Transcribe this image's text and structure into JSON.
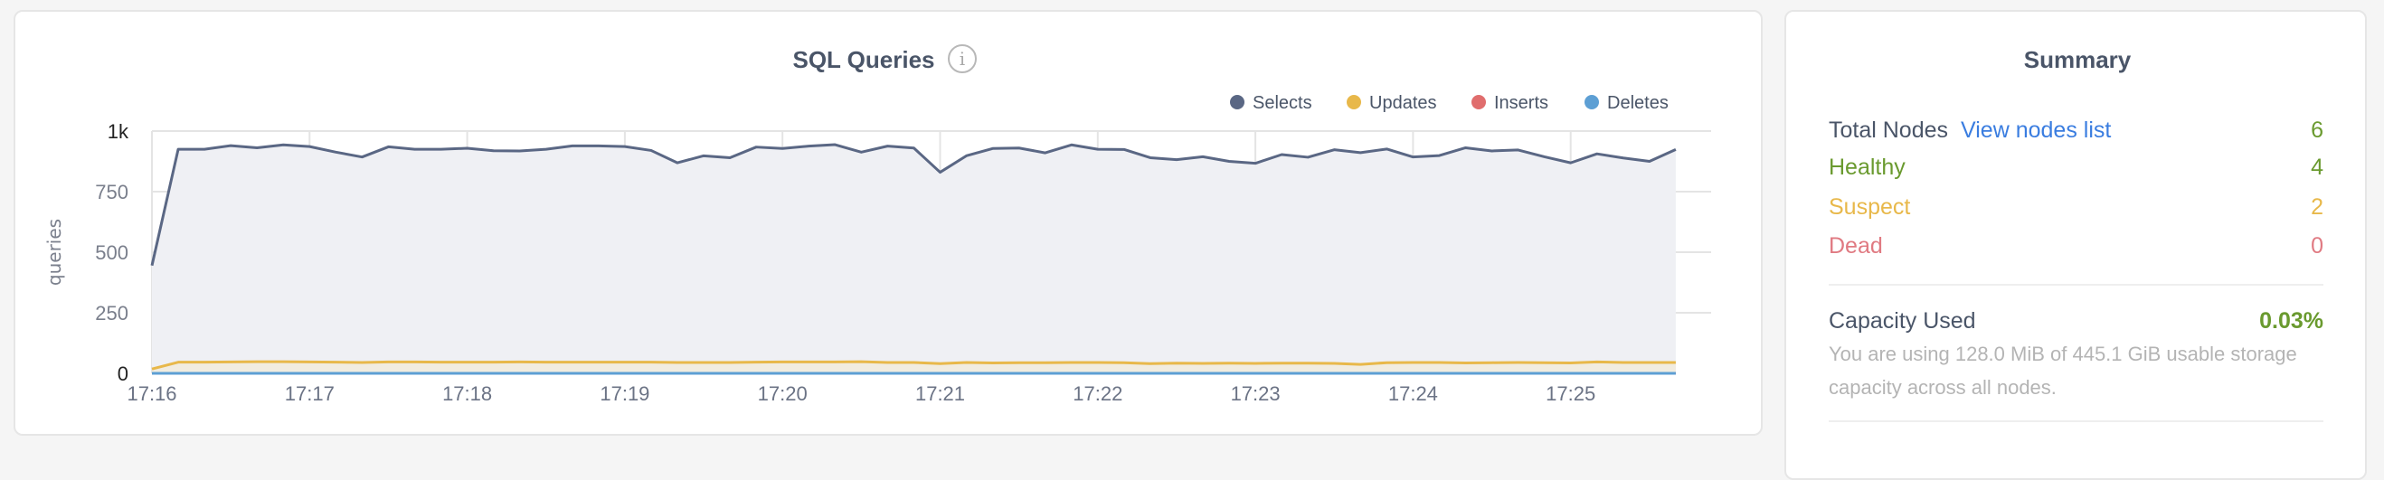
{
  "chart_data": {
    "type": "area",
    "title": "SQL Queries",
    "ylabel": "queries",
    "xlabel": "",
    "ylim": [
      0,
      1000
    ],
    "yticks": [
      "0",
      "250",
      "500",
      "750",
      "1k"
    ],
    "ytick_values": [
      0,
      250,
      500,
      750,
      1000
    ],
    "xticks": [
      "17:16",
      "17:17",
      "17:18",
      "17:19",
      "17:20",
      "17:21",
      "17:22",
      "17:23",
      "17:24",
      "17:25"
    ],
    "xlim": [
      "17:16:00",
      "17:25:40"
    ],
    "grid": true,
    "legend_position": "top-right",
    "x": [
      "17:16:00",
      "17:16:10",
      "17:16:20",
      "17:16:30",
      "17:16:40",
      "17:16:50",
      "17:17:00",
      "17:17:10",
      "17:17:20",
      "17:17:30",
      "17:17:40",
      "17:17:50",
      "17:18:00",
      "17:18:10",
      "17:18:20",
      "17:18:30",
      "17:18:40",
      "17:18:50",
      "17:19:00",
      "17:19:10",
      "17:19:20",
      "17:19:30",
      "17:19:40",
      "17:19:50",
      "17:20:00",
      "17:20:10",
      "17:20:20",
      "17:20:30",
      "17:20:40",
      "17:20:50",
      "17:21:00",
      "17:21:10",
      "17:21:20",
      "17:21:30",
      "17:21:40",
      "17:21:50",
      "17:22:00",
      "17:22:10",
      "17:22:20",
      "17:22:30",
      "17:22:40",
      "17:22:50",
      "17:23:00",
      "17:23:10",
      "17:23:20",
      "17:23:30",
      "17:23:40",
      "17:23:50",
      "17:24:00",
      "17:24:10",
      "17:24:20",
      "17:24:30",
      "17:24:40",
      "17:24:50",
      "17:25:00",
      "17:25:10",
      "17:25:20",
      "17:25:30",
      "17:25:40"
    ],
    "series": [
      {
        "name": "Selects",
        "color": "#5a6784",
        "fill": "#eff0f4",
        "values": [
          445,
          925,
          925,
          940,
          931,
          943,
          936,
          913,
          893,
          935,
          925,
          925,
          929,
          919,
          918,
          925,
          939,
          939,
          936,
          920,
          869,
          898,
          890,
          934,
          928,
          938,
          944,
          913,
          938,
          930,
          830,
          898,
          928,
          930,
          910,
          943,
          925,
          924,
          890,
          882,
          894,
          875,
          867,
          903,
          892,
          923,
          911,
          926,
          893,
          899,
          931,
          918,
          922,
          894,
          869,
          906,
          889,
          875,
          924
        ]
      },
      {
        "name": "Updates",
        "color": "#e8b84a",
        "fill": "#f1ece0",
        "values": [
          18,
          46,
          46,
          47,
          48,
          48,
          47,
          46,
          45,
          47,
          47,
          46,
          46,
          46,
          47,
          46,
          46,
          46,
          46,
          46,
          45,
          45,
          45,
          46,
          47,
          47,
          47,
          48,
          45,
          45,
          40,
          45,
          43,
          44,
          44,
          45,
          45,
          44,
          40,
          42,
          41,
          42,
          41,
          42,
          42,
          41,
          37,
          44,
          45,
          45,
          43,
          44,
          45,
          44,
          43,
          47,
          45,
          45,
          45
        ]
      },
      {
        "name": "Inserts",
        "color": "#e06d6d",
        "values": [
          0,
          0,
          0,
          0,
          0,
          0,
          0,
          0,
          0,
          0,
          0,
          0,
          0,
          0,
          0,
          0,
          0,
          0,
          0,
          0,
          0,
          0,
          0,
          0,
          0,
          0,
          0,
          0,
          0,
          0,
          0,
          0,
          0,
          0,
          0,
          0,
          0,
          0,
          0,
          0,
          0,
          0,
          0,
          0,
          0,
          0,
          0,
          0,
          0,
          0,
          0,
          0,
          0,
          0,
          0,
          0,
          0,
          0,
          0
        ]
      },
      {
        "name": "Deletes",
        "color": "#5d9fd4",
        "values": [
          0,
          0,
          0,
          0,
          0,
          0,
          0,
          0,
          0,
          0,
          0,
          0,
          0,
          0,
          0,
          0,
          0,
          0,
          0,
          0,
          0,
          0,
          0,
          0,
          0,
          0,
          0,
          0,
          0,
          0,
          0,
          0,
          0,
          0,
          0,
          0,
          0,
          0,
          0,
          0,
          0,
          0,
          0,
          0,
          0,
          0,
          0,
          0,
          0,
          0,
          0,
          0,
          0,
          0,
          0,
          0,
          0,
          0,
          0
        ]
      }
    ]
  },
  "chart_header": {
    "info_icon": "info-circle-icon",
    "info_glyph": "i"
  },
  "summary": {
    "title": "Summary",
    "total_nodes": {
      "label": "Total Nodes",
      "link": "View nodes list",
      "value": "6",
      "label_color": "#4a5568",
      "value_color": "#6a9a2f"
    },
    "healthy": {
      "label": "Healthy",
      "value": "4",
      "color": "#6a9a2f"
    },
    "suspect": {
      "label": "Suspect",
      "value": "2",
      "color": "#e8b84a"
    },
    "dead": {
      "label": "Dead",
      "value": "0",
      "color": "#e07a82"
    },
    "capacity": {
      "label": "Capacity Used",
      "value": "0.03%",
      "value_color": "#6a9a2f",
      "description": "You are using 128.0 MiB of 445.1 GiB usable storage capacity across all nodes."
    }
  }
}
